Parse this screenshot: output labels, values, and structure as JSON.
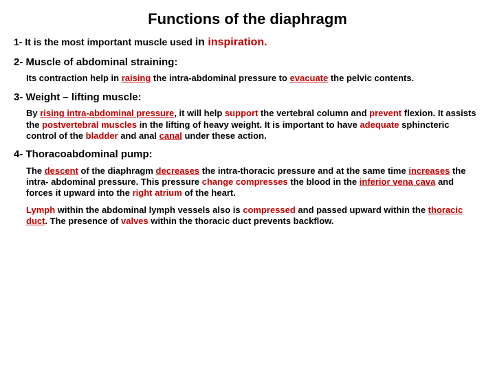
{
  "title": "Functions of the diaphragm",
  "item1_prefix": "1-  It is the most important muscle used ",
  "item1_in": "in ",
  "item1_insp": "inspiration.",
  "item2_heading": "2- Muscle of abdominal straining:",
  "item2_a": "Its contraction help in ",
  "item2_raising": "raising",
  "item2_b": " the intra-abdominal pressure to ",
  "item2_evacuate": "evacuate",
  "item2_c": " the pelvic contents.",
  "item3_heading": "3- Weight – lifting muscle:",
  "item3_a": "By ",
  "item3_rising": "rising intra-abdominal pressure",
  "item3_b": ", it will help ",
  "item3_support": "support",
  "item3_c": " the vertebral column and ",
  "item3_prevent": "prevent",
  "item3_d": " flexion. It assists the ",
  "item3_post": "postvertebral muscles",
  "item3_e": " in the lifting of heavy weight. It is important to have ",
  "item3_adequate": "adequate",
  "item3_f": " sphincteric control of the ",
  "item3_bladder": "bladder",
  "item3_g": " and anal ",
  "item3_canal": "canal",
  "item3_h": " under these action.",
  "item4_heading": "4- Thoracoabdominal pump:",
  "item4_a": "The ",
  "item4_descent": "descent",
  "item4_b": " of the diaphragm ",
  "item4_decreases": "decreases",
  "item4_c": " the intra-thoracic pressure and at the same time ",
  "item4_increases": "increases",
  "item4_d": " the intra- abdominal pressure. This pressure ",
  "item4_change": "change compresses",
  "item4_e": " the blood in the ",
  "item4_ivc": "inferior vena cava",
  "item4_f": " and forces it upward into the ",
  "item4_ra": "right atrium",
  "item4_g": " of the heart.",
  "item4p2_a": " ",
  "item4p2_lymph": "Lymph",
  "item4p2_b": " within the abdominal lymph vessels also is ",
  "item4p2_compressed": "compressed",
  "item4p2_c": " and passed upward within the ",
  "item4p2_td": "thoracic duct",
  "item4p2_d": ". The presence of ",
  "item4p2_valves": "valves",
  "item4p2_e": " within the thoracic duct prevents backflow."
}
